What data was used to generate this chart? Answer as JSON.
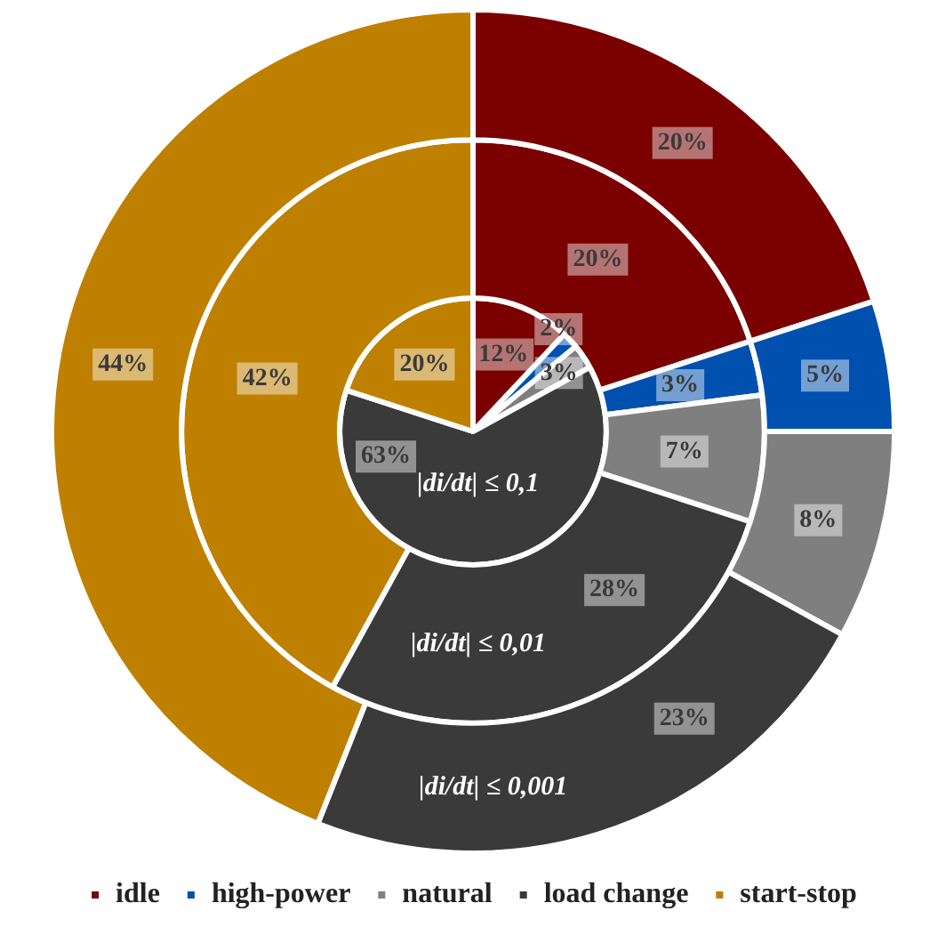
{
  "chart_data": {
    "type": "pie",
    "categories": [
      "idle",
      "high-power",
      "natural",
      "load change",
      "start-stop"
    ],
    "series": [
      {
        "name": "|di/dt| ≤ 0,1",
        "values": [
          12,
          2,
          3,
          63,
          20
        ],
        "value_labels": [
          "12%",
          "2%",
          "3%",
          "63%",
          "20%"
        ],
        "colors": [
          "#7b0000",
          "#0050b0",
          "#7f7f7f",
          "#3a3a3a",
          "#bf8000"
        ]
      },
      {
        "name": "|di/dt| ≤ 0,01",
        "values": [
          20,
          3,
          7,
          28,
          42
        ],
        "value_labels": [
          "20%",
          "3%",
          "7%",
          "28%",
          "42%"
        ],
        "colors": [
          "#7b0000",
          "#0050b0",
          "#7f7f7f",
          "#3a3a3a",
          "#bf8000"
        ]
      },
      {
        "name": "|di/dt| ≤ 0,001",
        "values": [
          20,
          5,
          8,
          23,
          44
        ],
        "value_labels": [
          "20%",
          "5%",
          "8%",
          "23%",
          "44%"
        ],
        "colors": [
          "#7b0000",
          "#0050b0",
          "#7f7f7f",
          "#3a3a3a",
          "#bf8000"
        ]
      }
    ],
    "legend": "bottom"
  }
}
